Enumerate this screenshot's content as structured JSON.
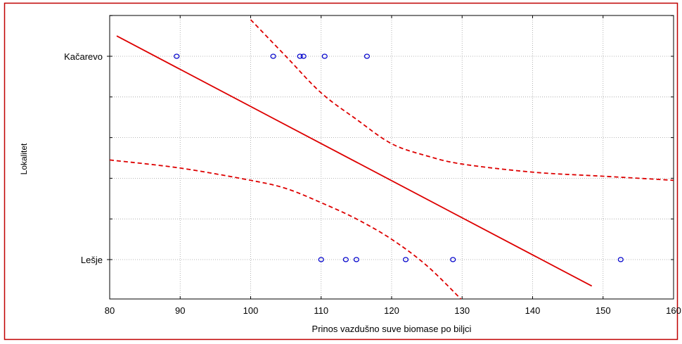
{
  "chart_data": {
    "type": "scatter",
    "xlabel": "Prinos vazdušno suve biomase po biljci",
    "ylabel": "Lokalitet",
    "xlim": [
      80,
      160
    ],
    "x_ticks": [
      "80",
      "90",
      "100",
      "110",
      "120",
      "130",
      "140",
      "150",
      "160"
    ],
    "y_categories": [
      "Kačarevo",
      "Lešje"
    ],
    "grid": true,
    "series": [
      {
        "category": "Kačarevo",
        "x": [
          89.5,
          103.2,
          107.0,
          107.5,
          110.5,
          116.5
        ]
      },
      {
        "category": "Lešje",
        "x": [
          110.0,
          113.5,
          115.0,
          122.0,
          128.7,
          152.5
        ]
      }
    ],
    "fit_line": {
      "style": "solid",
      "points": [
        [
          81.0,
          1.1
        ],
        [
          148.4,
          -0.13
        ]
      ]
    },
    "confidence_upper": {
      "style": "dashed",
      "points": [
        [
          100.0,
          1.18
        ],
        [
          105.0,
          1.0
        ],
        [
          110.0,
          0.82
        ],
        [
          115.0,
          0.69
        ],
        [
          120.0,
          0.57
        ],
        [
          125.0,
          0.51
        ],
        [
          130.0,
          0.47
        ],
        [
          140.0,
          0.43
        ],
        [
          150.0,
          0.41
        ],
        [
          160.0,
          0.39
        ]
      ]
    },
    "confidence_lower": {
      "style": "dashed",
      "points": [
        [
          80.0,
          0.49
        ],
        [
          90.0,
          0.45
        ],
        [
          100.0,
          0.39
        ],
        [
          105.0,
          0.35
        ],
        [
          110.0,
          0.28
        ],
        [
          115.0,
          0.2
        ],
        [
          120.0,
          0.1
        ],
        [
          125.0,
          -0.03
        ],
        [
          130.0,
          -0.2
        ]
      ]
    },
    "colors": {
      "points": "#0000cc",
      "lines": "#dd0000",
      "grid": "#a0a0a0",
      "frame": "#000000",
      "outer_border": "#c00000"
    }
  }
}
